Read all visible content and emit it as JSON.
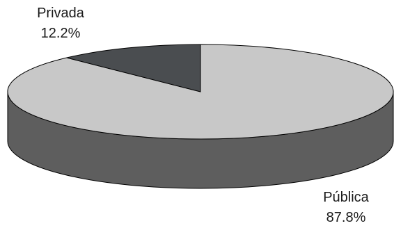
{
  "chart_data": {
    "type": "pie",
    "style": "3d",
    "categories": [
      "Pública",
      "Privada"
    ],
    "values": [
      87.8,
      12.2
    ],
    "value_labels": [
      "87.8%",
      "12.2%"
    ],
    "colors": {
      "Pública": {
        "top": "#c8c8c8",
        "side": "#5e5e5e"
      },
      "Privada": {
        "top": "#4a4d50",
        "side": "#2b2d2f"
      }
    },
    "outline": "#000000",
    "legend": "none"
  }
}
